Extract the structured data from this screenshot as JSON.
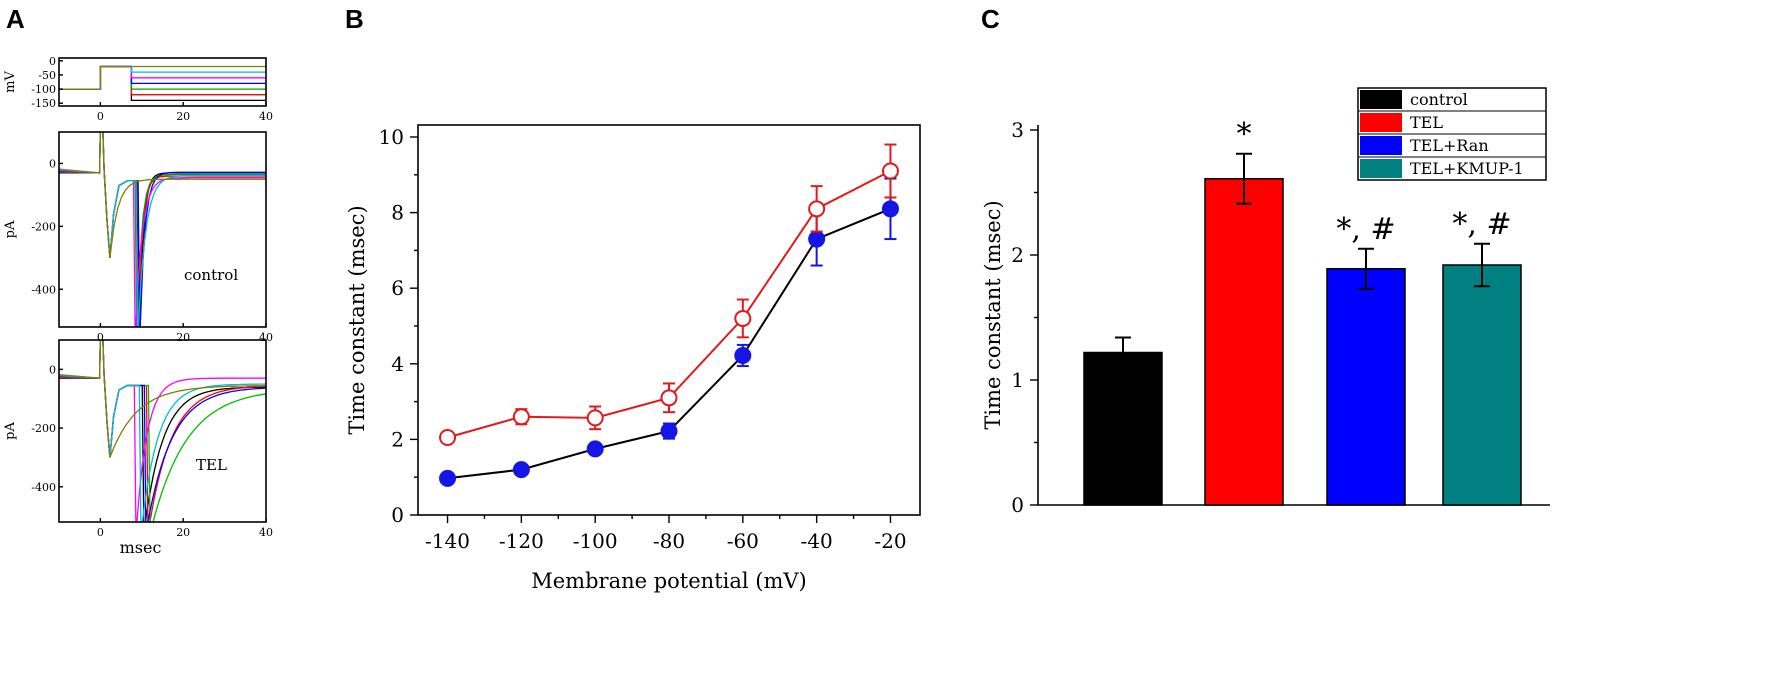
{
  "panels": {
    "a": "A",
    "b": "B",
    "c": "C"
  },
  "chart_data": [
    {
      "id": "A",
      "type": "line",
      "subplots": [
        {
          "id": "voltage",
          "ylabel": "mV",
          "xlabel": "",
          "xlim": [
            -10,
            40
          ],
          "ylim": [
            -160,
            10
          ],
          "xticks": [
            0,
            20,
            40
          ],
          "yticks": [
            0,
            -50,
            -100,
            -150
          ],
          "series": [
            {
              "name": "step -140",
              "color": "#000000",
              "pre": -100,
              "level": -140
            },
            {
              "name": "step -120",
              "color": "#ff0000",
              "pre": -100,
              "level": -120
            },
            {
              "name": "step -100",
              "color": "#00a000",
              "pre": -100,
              "level": -100
            },
            {
              "name": "step -80",
              "color": "#0000ff",
              "pre": -100,
              "level": -80
            },
            {
              "name": "step -60",
              "color": "#ff00ff",
              "pre": -100,
              "level": -60
            },
            {
              "name": "step -40",
              "color": "#00bcd4",
              "pre": -100,
              "level": -40
            },
            {
              "name": "step -20",
              "color": "#808000",
              "pre": -100,
              "level": -20
            }
          ]
        },
        {
          "id": "control",
          "ylabel": "pA",
          "label": "control",
          "xlim": [
            -10,
            40
          ],
          "ylim": [
            -520,
            100
          ],
          "xticks": [
            0,
            20,
            40
          ],
          "yticks": [
            0,
            -200,
            -400
          ],
          "series": [
            {
              "name": "step -140",
              "color": "#000000",
              "t_peak": 9.4,
              "tau": 0.95,
              "end": -30
            },
            {
              "name": "step -120",
              "color": "#ff0000",
              "t_peak": 9.1,
              "tau": 1.0,
              "end": -40
            },
            {
              "name": "step -100",
              "color": "#00a000",
              "t_peak": 8.8,
              "tau": 1.1,
              "end": -35
            },
            {
              "name": "step -80",
              "color": "#0000ff",
              "t_peak": 9.5,
              "tau": 1.2,
              "end": -28
            },
            {
              "name": "step -60",
              "color": "#ff00ff",
              "t_peak": 8.4,
              "tau": 1.6,
              "end": -45
            },
            {
              "name": "step -40",
              "color": "#00bcd4",
              "t_peak": 9.0,
              "tau": 1.8,
              "end": -38
            },
            {
              "name": "step -20",
              "color": "#808000",
              "t_peak": 2.3,
              "tau": 1.9,
              "end": -50
            }
          ]
        },
        {
          "id": "TEL",
          "ylabel": "pA",
          "xlabel": "msec",
          "label": "TEL",
          "xlim": [
            -10,
            40
          ],
          "ylim": [
            -520,
            100
          ],
          "xticks": [
            0,
            20,
            40
          ],
          "yticks": [
            0,
            -200,
            -400
          ],
          "series": [
            {
              "name": "step -140",
              "color": "#000000",
              "t_peak": 10.5,
              "tau": 4.5,
              "end": -60
            },
            {
              "name": "step -120",
              "color": "#ff0000",
              "t_peak": 11.5,
              "tau": 5.5,
              "end": -55
            },
            {
              "name": "step -100",
              "color": "#00c000",
              "t_peak": 12.0,
              "tau": 8.5,
              "end": -65
            },
            {
              "name": "step -80",
              "color": "#0000ff",
              "t_peak": 11.0,
              "tau": 6.0,
              "end": -60
            },
            {
              "name": "step -60",
              "color": "#ff00ff",
              "t_peak": 8.6,
              "tau": 2.6,
              "end": -30
            },
            {
              "name": "step -40",
              "color": "#00bcd4",
              "t_peak": 9.8,
              "tau": 4.0,
              "end": -50
            },
            {
              "name": "step -20",
              "color": "#808000",
              "t_peak": 2.6,
              "tau": 6.5,
              "end": -55
            }
          ]
        }
      ]
    },
    {
      "id": "B",
      "type": "line",
      "xlabel": "Membrane potential (mV)",
      "ylabel": "Time constant (msec)",
      "xlim": [
        -148,
        -12
      ],
      "ylim": [
        0,
        10
      ],
      "xticks": [
        -140,
        -120,
        -100,
        -80,
        -60,
        -40,
        -20
      ],
      "xtick_labels": [
        "-140",
        "-120",
        "-100",
        "-80",
        "-60",
        "-40",
        "-20"
      ],
      "yticks": [
        0,
        2,
        4,
        6,
        8,
        10
      ],
      "ytick_labels": [
        "0",
        "2",
        "4",
        "6",
        "8",
        "10"
      ],
      "x": [
        -140,
        -120,
        -100,
        -80,
        -60,
        -40,
        -20
      ],
      "series": [
        {
          "name": "TEL",
          "color": "#e31a1c",
          "marker": "open-circle",
          "line_color": "#e31a1c",
          "values": [
            2.05,
            2.6,
            2.57,
            3.1,
            5.2,
            8.1,
            9.1
          ],
          "errors": [
            0.12,
            0.2,
            0.3,
            0.38,
            0.5,
            0.6,
            0.7
          ]
        },
        {
          "name": "control",
          "color": "#1515e6",
          "marker": "filled-circle",
          "line_color": "#000000",
          "values": [
            0.97,
            1.2,
            1.75,
            2.22,
            4.22,
            7.3,
            8.1
          ],
          "errors": [
            0.1,
            0.1,
            0.12,
            0.2,
            0.28,
            0.7,
            0.8
          ]
        }
      ]
    },
    {
      "id": "C",
      "type": "bar",
      "ylabel": "Time constant (msec)",
      "ylim": [
        0,
        3
      ],
      "yticks": [
        0,
        1,
        2,
        3
      ],
      "ytick_labels": [
        "0",
        "1",
        "2",
        "3"
      ],
      "categories": [
        "control",
        "TEL",
        "TEL+Ran",
        "TEL+KMUP-1"
      ],
      "values": [
        1.22,
        2.61,
        1.89,
        1.92
      ],
      "errors": [
        0.12,
        0.2,
        0.16,
        0.17
      ],
      "colors": [
        "#000000",
        "#ff0000",
        "#0000ff",
        "#008080"
      ],
      "annotations": [
        "",
        "*",
        "*, #",
        "*, #"
      ],
      "legend": {
        "position": "top-right",
        "entries": [
          {
            "label": "control",
            "color": "#000000"
          },
          {
            "label": "TEL",
            "color": "#ff0000"
          },
          {
            "label": "TEL+Ran",
            "color": "#0000ff"
          },
          {
            "label": "TEL+KMUP-1",
            "color": "#008080"
          }
        ]
      }
    }
  ]
}
